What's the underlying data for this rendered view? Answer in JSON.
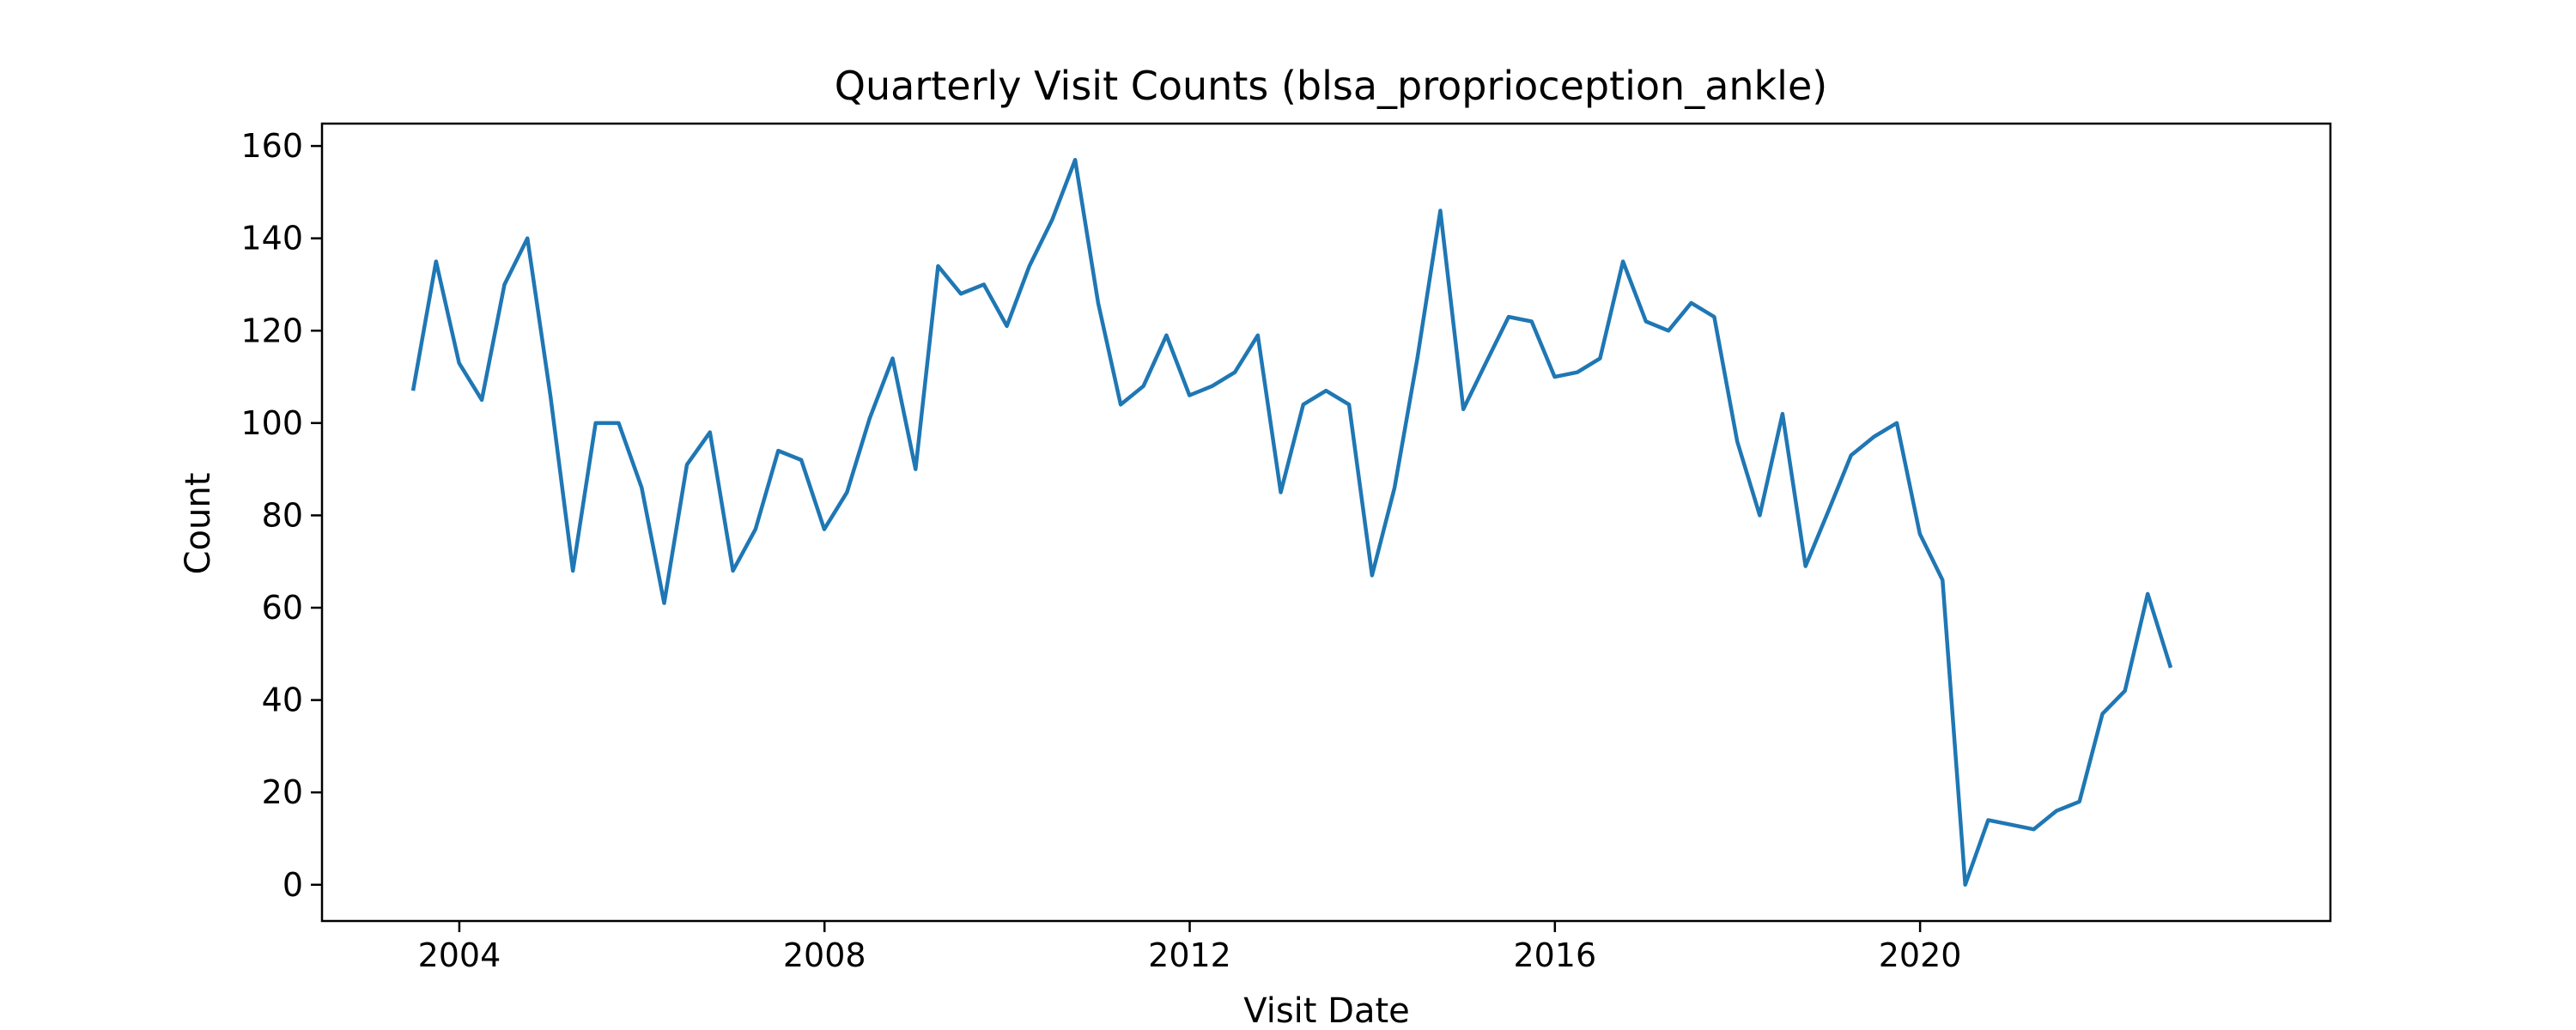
{
  "chart_data": {
    "type": "line",
    "title": "Quarterly Visit Counts (blsa_proprioception_ankle)",
    "xlabel": "Visit Date",
    "ylabel": "Count",
    "x_ticks": [
      "2004",
      "2008",
      "2012",
      "2016",
      "2020"
    ],
    "y_ticks": [
      "0",
      "20",
      "40",
      "60",
      "80",
      "100",
      "120",
      "140",
      "160"
    ],
    "xlim": [
      "2002-07-01",
      "2024-06-30"
    ],
    "ylim": [
      -7.85,
      164.85
    ],
    "grid": false,
    "line_color": "#1f77b4",
    "series": [
      {
        "x": [
          "2003-06-30",
          "2003-09-30",
          "2003-12-31",
          "2004-03-31",
          "2004-06-30",
          "2004-09-30",
          "2004-12-31",
          "2005-03-31",
          "2005-06-30",
          "2005-09-30",
          "2005-12-31",
          "2006-03-31",
          "2006-06-30",
          "2006-09-30",
          "2006-12-31",
          "2007-03-31",
          "2007-06-30",
          "2007-09-30",
          "2007-12-31",
          "2008-03-31",
          "2008-06-30",
          "2008-09-30",
          "2008-12-31",
          "2009-03-31",
          "2009-06-30",
          "2009-09-30",
          "2009-12-31",
          "2010-03-31",
          "2010-06-30",
          "2010-09-30",
          "2010-12-31",
          "2011-03-31",
          "2011-06-30",
          "2011-09-30",
          "2011-12-31",
          "2012-03-31",
          "2012-06-30",
          "2012-09-30",
          "2012-12-31",
          "2013-03-31",
          "2013-06-30",
          "2013-09-30",
          "2013-12-31",
          "2014-03-31",
          "2014-06-30",
          "2014-09-30",
          "2014-12-31",
          "2015-03-31",
          "2015-06-30",
          "2015-09-30",
          "2015-12-31",
          "2016-03-31",
          "2016-06-30",
          "2016-09-30",
          "2016-12-31",
          "2017-03-31",
          "2017-06-30",
          "2017-09-30",
          "2017-12-31",
          "2018-03-31",
          "2018-06-30",
          "2018-09-30",
          "2018-12-31",
          "2019-03-31",
          "2019-06-30",
          "2019-09-30",
          "2019-12-31",
          "2020-03-31",
          "2020-06-30",
          "2020-09-30",
          "2020-12-31",
          "2021-03-31",
          "2021-06-30",
          "2021-09-30",
          "2021-12-31",
          "2022-03-31",
          "2022-06-30",
          "2022-09-30"
        ],
        "y": [
          107,
          135,
          113,
          105,
          130,
          140,
          106,
          68,
          100,
          100,
          86,
          61,
          91,
          98,
          68,
          77,
          94,
          92,
          77,
          85,
          101,
          114,
          90,
          134,
          128,
          130,
          121,
          134,
          144,
          157,
          126,
          104,
          108,
          119,
          106,
          108,
          111,
          119,
          85,
          104,
          107,
          104,
          67,
          86,
          114,
          146,
          103,
          113,
          123,
          122,
          110,
          111,
          114,
          135,
          122,
          120,
          126,
          123,
          96,
          80,
          102,
          69,
          81,
          93,
          97,
          100,
          76,
          66,
          0,
          14,
          13,
          12,
          16,
          18,
          37,
          42,
          63,
          47
        ]
      }
    ]
  }
}
